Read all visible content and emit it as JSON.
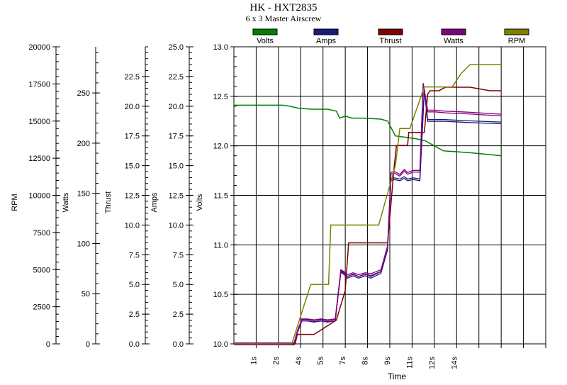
{
  "title": "HK - HXT2835",
  "subtitle": "6 x 3 Master Airscrew",
  "chart_data": {
    "type": "line",
    "title": "HK - HXT2835",
    "subtitle": "6 x 3 Master Airscrew",
    "xlabel": "Time",
    "x_ticks": [
      "1s",
      "2s",
      "4s",
      "5s",
      "7s",
      "8s",
      "9s",
      "11s",
      "12s",
      "14s"
    ],
    "grid": true,
    "legend_position": "top",
    "axes": [
      {
        "key": "rpm",
        "label": "RPM",
        "min": 0,
        "max": 20000,
        "step": 2500,
        "ticks": [
          "0",
          "2500",
          "5000",
          "7500",
          "10000",
          "12500",
          "15000",
          "17500",
          "20000"
        ]
      },
      {
        "key": "watts",
        "label": "Watts",
        "min": 0,
        "max": 296,
        "step": 50,
        "ticks": [
          "0",
          "50",
          "100",
          "150",
          "200",
          "250"
        ]
      },
      {
        "key": "thrust",
        "label": "Thrust",
        "min": 0,
        "max": 25,
        "step": 2.5,
        "ticks": [
          "0.0",
          "2.5",
          "5.0",
          "7.5",
          "10.0",
          "12.5",
          "15.0",
          "17.5",
          "20.0",
          "22.5"
        ]
      },
      {
        "key": "amps",
        "label": "Amps",
        "min": 0,
        "max": 25,
        "step": 2.5,
        "ticks": [
          "0.0",
          "2.5",
          "5.0",
          "7.5",
          "10.0",
          "12.5",
          "15.0",
          "17.5",
          "20.0",
          "22.5",
          "25.0"
        ]
      },
      {
        "key": "volts",
        "label": "Volts",
        "min": 10,
        "max": 13,
        "step": 0.5,
        "ticks": [
          "10.0",
          "10.5",
          "11.0",
          "11.5",
          "12.0",
          "12.5",
          "13.0"
        ]
      }
    ],
    "series": [
      {
        "name": "Volts",
        "color": "#008000",
        "axis": "volts",
        "x": [
          0,
          2.2,
          2.5,
          2.9,
          3.5,
          4.2,
          4.6,
          4.75,
          5.0,
          5.3,
          5.8,
          6.6,
          6.9,
          7.25,
          7.6,
          8.2,
          8.6,
          9.4,
          10.6,
          12.0
        ],
        "y": [
          12.41,
          12.41,
          12.4,
          12.38,
          12.37,
          12.37,
          12.35,
          12.28,
          12.3,
          12.28,
          12.28,
          12.27,
          12.25,
          12.1,
          12.09,
          12.07,
          12.05,
          11.95,
          11.93,
          11.9
        ]
      },
      {
        "name": "Amps",
        "color": "#1a1a7a",
        "axis": "amps",
        "x": [
          0,
          2.7,
          2.85,
          3.05,
          3.3,
          3.6,
          3.9,
          4.2,
          4.55,
          4.8,
          4.95,
          5.1,
          5.35,
          5.6,
          5.9,
          6.15,
          6.6,
          6.9,
          7.05,
          7.2,
          7.45,
          7.65,
          7.8,
          8.05,
          8.35,
          8.55,
          8.7,
          9.05,
          9.5,
          10.5,
          12.0
        ],
        "y": [
          0.0,
          0.0,
          1.0,
          2.0,
          2.0,
          1.9,
          2.0,
          1.9,
          2.0,
          6.1,
          5.9,
          5.6,
          5.8,
          5.6,
          5.8,
          5.6,
          6.0,
          8.0,
          13.8,
          13.9,
          13.8,
          14.0,
          13.8,
          13.9,
          13.8,
          21.4,
          18.8,
          18.8,
          18.8,
          18.7,
          18.6
        ]
      },
      {
        "name": "Thrust",
        "color": "#800000",
        "axis": "thrust",
        "x": [
          0,
          2.75,
          2.85,
          3.6,
          4.6,
          5.0,
          5.15,
          6.0,
          6.9,
          7.2,
          7.3,
          7.8,
          7.85,
          8.55,
          8.7,
          8.8,
          9.2,
          9.4,
          9.5,
          10.6,
          11.5,
          12.0
        ],
        "y": [
          0.0,
          0.0,
          0.8,
          0.8,
          2.0,
          4.5,
          8.5,
          8.5,
          8.5,
          15.0,
          16.7,
          16.7,
          17.8,
          17.8,
          21.0,
          21.3,
          21.3,
          21.5,
          21.6,
          21.6,
          21.3,
          21.3
        ]
      },
      {
        "name": "Watts",
        "color": "#800080",
        "axis": "watts",
        "x": [
          0,
          2.7,
          2.85,
          3.05,
          3.3,
          3.6,
          3.9,
          4.2,
          4.55,
          4.8,
          4.95,
          5.1,
          5.35,
          5.6,
          5.9,
          6.15,
          6.6,
          6.9,
          7.05,
          7.2,
          7.45,
          7.65,
          7.8,
          8.05,
          8.35,
          8.5,
          8.7,
          9.05,
          9.5,
          10.5,
          12.0
        ],
        "y": [
          0,
          0,
          12,
          24,
          24,
          23,
          24,
          23,
          24,
          73,
          71,
          68,
          70,
          68,
          70,
          69,
          73,
          97,
          170,
          171,
          168,
          173,
          170,
          172,
          172,
          259,
          232,
          232,
          231,
          230,
          228
        ]
      },
      {
        "name": "RPM",
        "color": "#808000",
        "axis": "rpm",
        "x": [
          0,
          2.55,
          2.6,
          3.45,
          3.5,
          4.25,
          4.35,
          5.6,
          6.35,
          6.5,
          7.25,
          7.45,
          7.6,
          7.9,
          8.55,
          9.05,
          9.5,
          9.8,
          10.2,
          10.6,
          11.0,
          12.0
        ],
        "y": [
          0,
          0,
          0,
          4000,
          4000,
          4000,
          8000,
          8000,
          8000,
          8000,
          12000,
          14500,
          14500,
          14500,
          17300,
          17300,
          17300,
          17300,
          18200,
          18800,
          18800,
          18800
        ]
      }
    ]
  }
}
